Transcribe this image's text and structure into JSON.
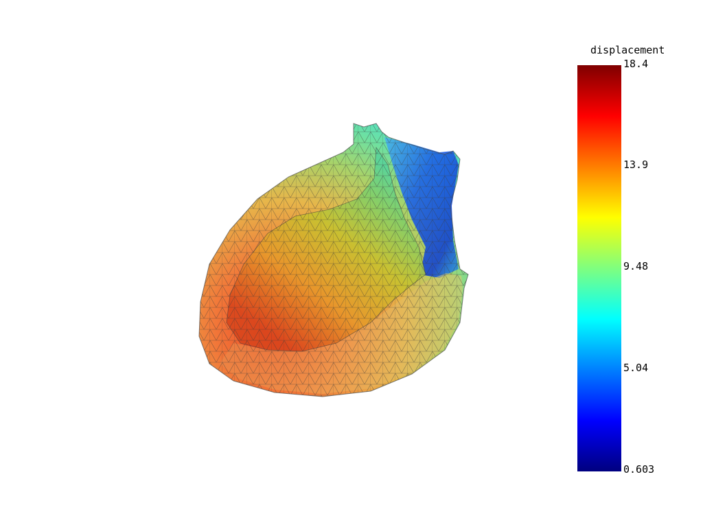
{
  "scalar_bar": {
    "title": "displacement",
    "ticks": [
      "18.4",
      "13.9",
      "9.48",
      "5.04",
      "0.603"
    ],
    "range": [
      0.603,
      18.4
    ],
    "colormap": "jet",
    "colormap_stops": [
      "#7f0000",
      "#ff0000",
      "#ff7f00",
      "#ffff00",
      "#7fff7f",
      "#00ffff",
      "#007fff",
      "#0000ff",
      "#00007f"
    ]
  },
  "mesh": {
    "surface_icon": "heart-mesh-surface",
    "edge_color": "#3a3a3a",
    "opacity": 0.7
  }
}
